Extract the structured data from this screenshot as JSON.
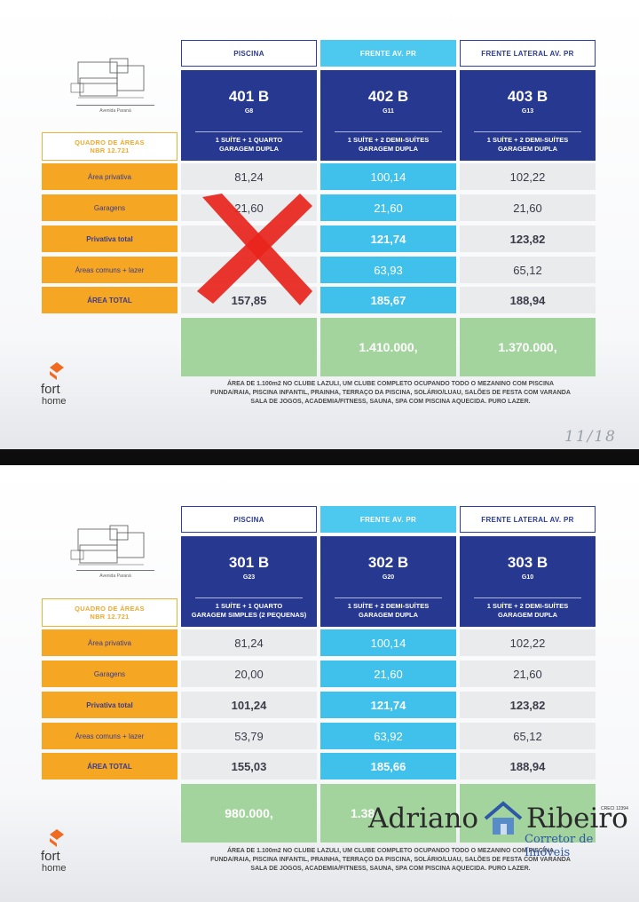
{
  "page1": {
    "column_headers": [
      "PISCINA",
      "FRENTE AV. PR",
      "FRENTE LATERAL AV. PR"
    ],
    "units": [
      {
        "name": "401 B",
        "garage": "G8",
        "desc1": "1 SUÍTE + 1 QUARTO",
        "desc2": "GARAGEM DUPLA"
      },
      {
        "name": "402 B",
        "garage": "G11",
        "desc1": "1 SUÍTE + 2 DEMI-SUÍTES",
        "desc2": "GARAGEM DUPLA"
      },
      {
        "name": "403 B",
        "garage": "G13",
        "desc1": "1 SUÍTE + 2 DEMI-SUÍTES",
        "desc2": "GARAGEM DUPLA"
      }
    ],
    "table_title_1": "QUADRO DE ÁREAS",
    "table_title_2": "NBR 12.721",
    "rows": [
      {
        "label": "Área privativa",
        "values": [
          "81,24",
          "100,14",
          "102,22"
        ]
      },
      {
        "label": "Garagens",
        "values": [
          "21,60",
          "21,60",
          "21,60"
        ]
      },
      {
        "label": "Privativa total",
        "values": [
          "",
          "121,74",
          "123,82"
        ]
      },
      {
        "label": "Áreas comuns + lazer",
        "values": [
          "",
          "63,93",
          "65,12"
        ]
      },
      {
        "label": "ÁREA TOTAL",
        "values": [
          "157,85",
          "185,67",
          "188,94"
        ]
      }
    ],
    "prices": [
      "",
      "1.410.000,",
      "1.370.000,"
    ],
    "footer_lines": [
      "ÁREA DE 1.100m2 NO CLUBE LAZULI, UM CLUBE COMPLETO OCUPANDO TODO O MEZANINO COM PISCINA",
      "FUNDA/RAIA, PISCINA INFANTIL, PRAINHA, TERRAÇO DA PISCINA, SOLÁRIO/LUAU, SALÕES DE FESTA COM VARANDA",
      "SALA DE JOGOS, ACADEMIA/FITNESS, SAUNA, SPA COM PISCINA AQUECIDA. PURO LAZER."
    ],
    "plan_caption": "Avenida Paraná",
    "page_number": "11/18"
  },
  "page2": {
    "column_headers": [
      "PISCINA",
      "FRENTE AV. PR",
      "FRENTE LATERAL AV. PR"
    ],
    "units": [
      {
        "name": "301 B",
        "garage": "G23",
        "desc1": "1 SUÍTE + 1 QUARTO",
        "desc2": "GARAGEM SIMPLES (2 PEQUENAS)"
      },
      {
        "name": "302 B",
        "garage": "G20",
        "desc1": "1 SUÍTE + 2 DEMI-SUÍTES",
        "desc2": "GARAGEM DUPLA"
      },
      {
        "name": "303 B",
        "garage": "G10",
        "desc1": "1 SUÍTE + 2 DEMI-SUÍTES",
        "desc2": "GARAGEM DUPLA"
      }
    ],
    "table_title_1": "QUADRO DE ÁREAS",
    "table_title_2": "NBR 12.721",
    "rows": [
      {
        "label": "Área privativa",
        "values": [
          "81,24",
          "100,14",
          "102,22"
        ]
      },
      {
        "label": "Garagens",
        "values": [
          "20,00",
          "21,60",
          "21,60"
        ]
      },
      {
        "label": "Privativa total",
        "values": [
          "101,24",
          "121,74",
          "123,82"
        ]
      },
      {
        "label": "Áreas comuns + lazer",
        "values": [
          "53,79",
          "63,92",
          "65,12"
        ]
      },
      {
        "label": "ÁREA TOTAL",
        "values": [
          "155,03",
          "185,66",
          "188,94"
        ]
      }
    ],
    "prices": [
      "980.000,",
      "1.38",
      ""
    ],
    "footer_lines": [
      "ÁREA DE 1.100m2 NO CLUBE LAZULI, UM CLUBE COMPLETO OCUPANDO TODO O MEZANINO COM PISCINA",
      "FUNDA/RAIA, PISCINA INFANTIL, PRAINHA, TERRAÇO DA PISCINA, SOLÁRIO/LUAU, SALÕES DE FESTA COM VARANDA",
      "SALA DE JOGOS, ACADEMIA/FITNESS, SAUNA, SPA COM PISCINA AQUECIDA. PURO LAZER."
    ],
    "plan_caption": "Avenida Paraná"
  },
  "brand": {
    "word1": "fort",
    "word2": "home"
  },
  "watermark": {
    "name_left": "Adriano",
    "name_right": "Ribeiro",
    "subtitle": "Corretor de Imóveis",
    "creci": "CRECI 12394"
  },
  "colors": {
    "navy": "#26388f",
    "cyan": "#3fc1ec",
    "orange": "#f5a623",
    "green": "#a3d49e",
    "gray": "#eaebed",
    "cross_red": "#e8241c"
  }
}
